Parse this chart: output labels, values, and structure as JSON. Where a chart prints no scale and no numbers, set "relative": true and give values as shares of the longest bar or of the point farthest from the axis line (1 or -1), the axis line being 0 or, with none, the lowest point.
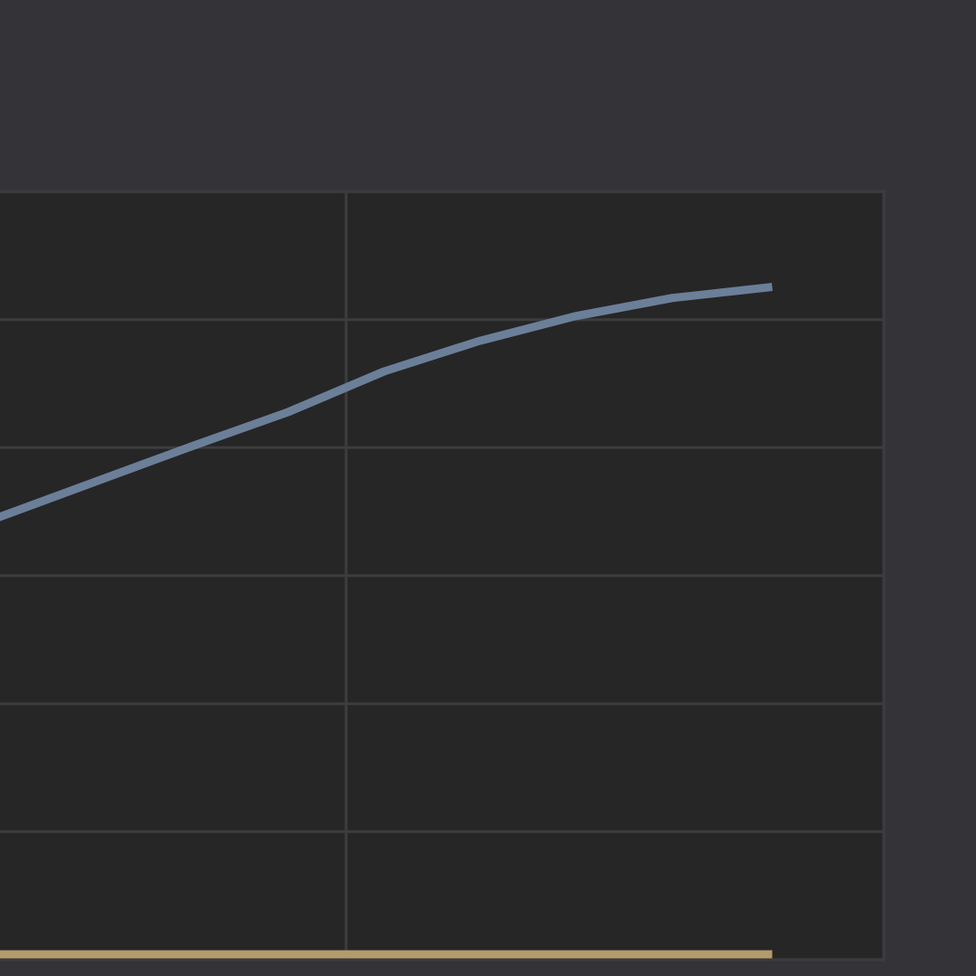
{
  "chart_data": {
    "type": "line",
    "relative": true,
    "categories": [
      null,
      null,
      null,
      null,
      null,
      null,
      null,
      null,
      null
    ],
    "series": [
      {
        "color": "#6b7f99",
        "values": [
          0.656,
          0.709,
          0.762,
          0.813,
          0.874,
          0.92,
          0.957,
          0.984,
          1
        ]
      },
      {
        "color": "#b39c6b",
        "values": [
          0,
          0,
          0,
          0,
          0,
          0,
          0,
          0,
          0
        ]
      }
    ],
    "grid": true,
    "marker": "none",
    "line_style": "solid"
  }
}
